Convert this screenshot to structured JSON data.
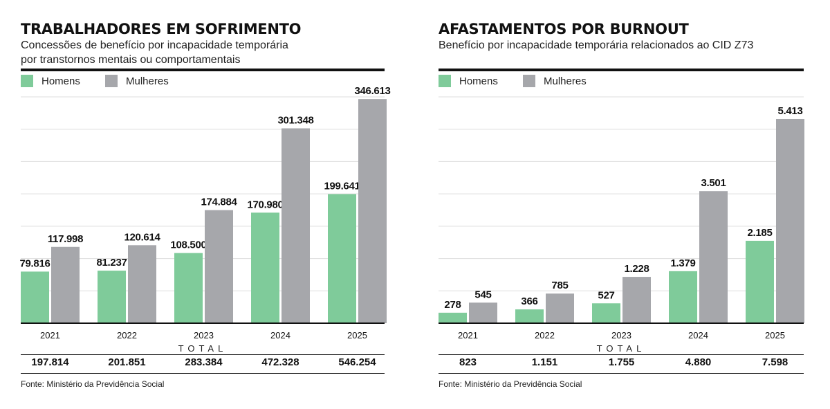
{
  "colors": {
    "homens": "#7fcb9a",
    "mulheres": "#a6a7ab",
    "grid": "#dddddd",
    "axis": "#111111"
  },
  "left": {
    "title": "TRABALHADORES EM SOFRIMENTO",
    "subtitle_line1": "Concessões de benefício por incapacidade temporária",
    "subtitle_line2": "por transtornos mentais ou comportamentais",
    "legend": {
      "homens": "Homens",
      "mulheres": "Mulheres"
    },
    "total_label": "TOTAL",
    "totals": [
      "197.814",
      "201.851",
      "283.384",
      "472.328",
      "546.254"
    ],
    "source": "Fonte: Ministério da Previdência Social"
  },
  "right": {
    "title": "AFASTAMENTOS POR BURNOUT",
    "subtitle_line1": "Benefício por incapacidade temporária relacionados ao CID Z73",
    "legend": {
      "homens": "Homens",
      "mulheres": "Mulheres"
    },
    "total_label": "TOTAL",
    "totals": [
      "823",
      "1.151",
      "1.755",
      "4.880",
      "7.598"
    ],
    "source": "Fonte: Ministério da Previdência Social"
  },
  "chart_data": [
    {
      "type": "bar",
      "title": "TRABALHADORES EM SOFRIMENTO",
      "categories": [
        "2021",
        "2022",
        "2023",
        "2024",
        "2025"
      ],
      "series": [
        {
          "name": "Homens",
          "values": [
            79816,
            81237,
            108500,
            170980,
            199641
          ],
          "labels": [
            "79.816",
            "81.237",
            "108.500",
            "170.980",
            "199.641"
          ]
        },
        {
          "name": "Mulheres",
          "values": [
            117998,
            120614,
            174884,
            301348,
            346613
          ],
          "labels": [
            "117.998",
            "120.614",
            "174.884",
            "301.348",
            "346.613"
          ]
        }
      ],
      "ylim": [
        0,
        350000
      ],
      "grid": true,
      "legend": "top-left"
    },
    {
      "type": "bar",
      "title": "AFASTAMENTOS POR BURNOUT",
      "categories": [
        "2021",
        "2022",
        "2023",
        "2024",
        "2025"
      ],
      "series": [
        {
          "name": "Homens",
          "values": [
            278,
            366,
            527,
            1379,
            2185
          ],
          "labels": [
            "278",
            "366",
            "527",
            "1.379",
            "2.185"
          ]
        },
        {
          "name": "Mulheres",
          "values": [
            545,
            785,
            1228,
            3501,
            5413
          ],
          "labels": [
            "545",
            "785",
            "1.228",
            "3.501",
            "5.413"
          ]
        }
      ],
      "ylim": [
        0,
        6000
      ],
      "grid": true,
      "legend": "top-left"
    }
  ]
}
